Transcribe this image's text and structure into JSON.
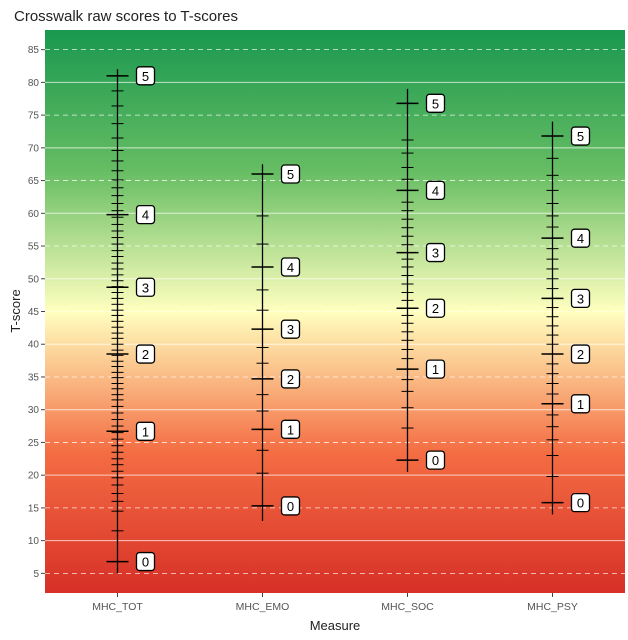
{
  "chart_data": {
    "type": "scatter",
    "title": "Crosswalk raw scores to T-scores",
    "xlabel": "Measure",
    "ylabel": "T-score",
    "ylim": [
      2,
      88
    ],
    "yticks": [
      5,
      10,
      15,
      20,
      25,
      30,
      35,
      40,
      45,
      50,
      55,
      60,
      65,
      70,
      75,
      80,
      85
    ],
    "grid": true,
    "background": "vertical gradient green (high) to yellow (middle) to red (low)",
    "colors": {
      "top": "#1a9850",
      "upper": "#66bd63",
      "middle": "#ffffbf",
      "lower": "#f46d43",
      "bottom": "#d73027",
      "line": "#000000",
      "label_border": "#000000",
      "label_fill": "#ffffff"
    },
    "categories": [
      "MHC_TOT",
      "MHC_EMO",
      "MHC_SOC",
      "MHC_PSY"
    ],
    "series": [
      {
        "category": "MHC_TOT",
        "range": [
          5,
          82
        ],
        "ticks": [
          6.8,
          11.5,
          14.5,
          16,
          17.2,
          18.5,
          19.6,
          20.6,
          21.6,
          22.5,
          23.5,
          24.5,
          25.5,
          26.5,
          27.5,
          28.5,
          29.5,
          30.5,
          31.5,
          32.3,
          33.2,
          34,
          34.9,
          35.7,
          36.6,
          37.4,
          38.3,
          39.1,
          40,
          40.9,
          41.7,
          42.6,
          43.5,
          44.4,
          45.2,
          46.1,
          47,
          47.9,
          48.8,
          49.7,
          50.6,
          51.5,
          52.4,
          53.4,
          54.3,
          55.3,
          56.3,
          57.3,
          58.3,
          59.4,
          60.4,
          61.5,
          62.7,
          63.9,
          65.1,
          66.5,
          68,
          69.6,
          71.5,
          73.7,
          76.4,
          78.7,
          81
        ],
        "anchors": [
          {
            "label": "0",
            "y": 6.8
          },
          {
            "label": "1",
            "y": 26.7
          },
          {
            "label": "2",
            "y": 38.5
          },
          {
            "label": "3",
            "y": 48.7
          },
          {
            "label": "4",
            "y": 59.8
          },
          {
            "label": "5",
            "y": 81
          }
        ]
      },
      {
        "category": "MHC_EMO",
        "range": [
          13,
          67.5
        ],
        "ticks": [
          15.3,
          20.3,
          23.8,
          27,
          29.8,
          32.3,
          34.7,
          37.1,
          39.5,
          42.3,
          45.2,
          48.3,
          51.8,
          55.3,
          59.6,
          66
        ],
        "anchors": [
          {
            "label": "0",
            "y": 15.3
          },
          {
            "label": "1",
            "y": 27
          },
          {
            "label": "2",
            "y": 34.7
          },
          {
            "label": "3",
            "y": 42.3
          },
          {
            "label": "4",
            "y": 51.8
          },
          {
            "label": "5",
            "y": 66
          }
        ]
      },
      {
        "category": "MHC_SOC",
        "range": [
          20.5,
          79
        ],
        "ticks": [
          22.3,
          27.2,
          30.3,
          32.8,
          34.6,
          36.2,
          37.8,
          39.2,
          40.6,
          41.9,
          43.2,
          44.4,
          45.5,
          46.7,
          47.9,
          49.2,
          50.5,
          51.8,
          53,
          54,
          55.2,
          56.5,
          57.8,
          59.1,
          60.4,
          61.7,
          63.5,
          65.2,
          67,
          69.2,
          71.2,
          76.8
        ],
        "anchors": [
          {
            "label": "0",
            "y": 22.3
          },
          {
            "label": "1",
            "y": 36.2
          },
          {
            "label": "2",
            "y": 45.5
          },
          {
            "label": "3",
            "y": 54
          },
          {
            "label": "4",
            "y": 63.5
          },
          {
            "label": "5",
            "y": 76.8
          }
        ]
      },
      {
        "category": "MHC_PSY",
        "range": [
          14,
          74
        ],
        "ticks": [
          15.8,
          19.8,
          23,
          25.4,
          27.4,
          29.2,
          30.9,
          32.4,
          34,
          35.5,
          37,
          38.5,
          40,
          41.4,
          42.8,
          44.2,
          45.6,
          47,
          48.5,
          50,
          51.5,
          53,
          54.6,
          56.2,
          57.9,
          59.6,
          61.5,
          63.5,
          65.8,
          68.4,
          71.8
        ],
        "anchors": [
          {
            "label": "0",
            "y": 15.8
          },
          {
            "label": "1",
            "y": 30.9
          },
          {
            "label": "2",
            "y": 38.5
          },
          {
            "label": "3",
            "y": 47
          },
          {
            "label": "4",
            "y": 56.2
          },
          {
            "label": "5",
            "y": 71.8
          }
        ]
      }
    ]
  }
}
